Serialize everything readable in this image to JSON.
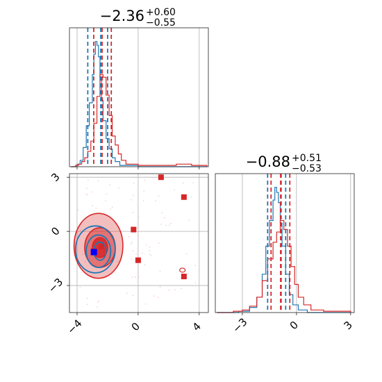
{
  "chart_data": {
    "type": "corner",
    "colors": {
      "series_a": "#d62728",
      "series_b": "#1f77b4",
      "truth": "#0000ff",
      "grid": "#b0b0b0"
    },
    "panels": [
      {
        "id": "param1-marginal",
        "type": "histogram",
        "title": {
          "median": "−2.36",
          "upper": "+0.60",
          "lower": "−0.55"
        },
        "xlim": [
          -4.5,
          4.6
        ],
        "xticks": [
          -4,
          0,
          4
        ],
        "xtick_labels": [
          "",
          "",
          ""
        ],
        "vlines": {
          "series_a": [
            -2.91,
            -2.36,
            -1.76
          ],
          "series_b": [
            -3.3,
            -2.45,
            -2.0
          ]
        },
        "series_a_density": [
          [
            -4.4,
            0.0
          ],
          [
            -4.1,
            0.01
          ],
          [
            -3.9,
            0.02
          ],
          [
            -3.7,
            0.04
          ],
          [
            -3.5,
            0.07
          ],
          [
            -3.3,
            0.12
          ],
          [
            -3.1,
            0.2
          ],
          [
            -2.9,
            0.34
          ],
          [
            -2.7,
            0.55
          ],
          [
            -2.5,
            0.72
          ],
          [
            -2.3,
            0.7
          ],
          [
            -2.1,
            0.56
          ],
          [
            -1.9,
            0.4
          ],
          [
            -1.7,
            0.24
          ],
          [
            -1.5,
            0.17
          ],
          [
            -1.3,
            0.1
          ],
          [
            -1.1,
            0.05
          ],
          [
            -0.8,
            0.02
          ],
          [
            0.0,
            0.01
          ],
          [
            1.5,
            0.01
          ],
          [
            2.5,
            0.02
          ],
          [
            3.5,
            0.01
          ],
          [
            4.5,
            0.0
          ]
        ],
        "series_b_density": [
          [
            -4.4,
            0.0
          ],
          [
            -4.0,
            0.02
          ],
          [
            -3.8,
            0.05
          ],
          [
            -3.6,
            0.15
          ],
          [
            -3.4,
            0.32
          ],
          [
            -3.2,
            0.5
          ],
          [
            -3.0,
            0.72
          ],
          [
            -2.9,
            0.88
          ],
          [
            -2.8,
            0.98
          ],
          [
            -2.7,
            0.95
          ],
          [
            -2.6,
            0.86
          ],
          [
            -2.5,
            0.7
          ],
          [
            -2.4,
            0.52
          ],
          [
            -2.3,
            0.36
          ],
          [
            -2.1,
            0.22
          ],
          [
            -1.9,
            0.14
          ],
          [
            -1.7,
            0.07
          ],
          [
            -1.5,
            0.04
          ],
          [
            -1.2,
            0.01
          ],
          [
            0.0,
            0.0
          ],
          [
            4.5,
            0.0
          ]
        ]
      },
      {
        "id": "joint",
        "type": "scatter-contour",
        "xlim": [
          -4.5,
          4.6
        ],
        "ylim": [
          -4.5,
          3.2
        ],
        "xticks": [
          -4,
          0,
          4
        ],
        "xtick_labels": [
          "−4",
          "0",
          "4"
        ],
        "yticks": [
          -3,
          0,
          3
        ],
        "ytick_labels": [
          "−3",
          "0",
          "3"
        ],
        "series_a_contours": [
          {
            "cx": -2.6,
            "cy": -0.8,
            "rx": 1.6,
            "ry": 1.8,
            "alpha": 0.3
          },
          {
            "cx": -2.5,
            "cy": -0.9,
            "rx": 1.0,
            "ry": 1.1,
            "alpha": 0.5
          },
          {
            "cx": -2.5,
            "cy": -0.9,
            "rx": 0.5,
            "ry": 0.55,
            "alpha": 0.85
          }
        ],
        "series_b_contours": [
          {
            "cx": -2.8,
            "cy": -1.0,
            "rx": 1.3,
            "ry": 1.3
          },
          {
            "cx": -2.6,
            "cy": -1.1,
            "rx": 0.8,
            "ry": 0.9
          },
          {
            "cx": -2.5,
            "cy": -1.1,
            "rx": 0.4,
            "ry": 0.5
          }
        ],
        "series_a_markers": [
          [
            1.5,
            3.0
          ],
          [
            3.0,
            1.9
          ],
          [
            -0.3,
            0.1
          ],
          [
            0.0,
            -1.6
          ],
          [
            3.0,
            -2.5
          ],
          [
            -2.4,
            -0.85
          ],
          [
            -2.9,
            -1.1
          ]
        ],
        "truth_marker": [
          -2.9,
          -1.15
        ],
        "background_points_count": 90
      },
      {
        "id": "param2-marginal",
        "type": "histogram",
        "title": {
          "median": "−0.88",
          "upper": "+0.51",
          "lower": "−0.53"
        },
        "xlim": [
          -4.5,
          3.2
        ],
        "xticks": [
          -3,
          0,
          3
        ],
        "xtick_labels": [
          "−3",
          "0",
          "3"
        ],
        "vlines": {
          "series_a": [
            -1.41,
            -0.88,
            -0.37
          ],
          "series_b": [
            -1.6,
            -0.85,
            -0.6
          ]
        },
        "series_a_density": [
          [
            -4.4,
            0.0
          ],
          [
            -3.5,
            0.01
          ],
          [
            -3.0,
            0.02
          ],
          [
            -2.6,
            0.05
          ],
          [
            -2.2,
            0.12
          ],
          [
            -1.9,
            0.25
          ],
          [
            -1.6,
            0.42
          ],
          [
            -1.3,
            0.55
          ],
          [
            -1.1,
            0.63
          ],
          [
            -0.9,
            0.72
          ],
          [
            -0.7,
            0.65
          ],
          [
            -0.5,
            0.52
          ],
          [
            -0.3,
            0.36
          ],
          [
            -0.1,
            0.22
          ],
          [
            0.1,
            0.12
          ],
          [
            0.4,
            0.06
          ],
          [
            0.8,
            0.02
          ],
          [
            1.5,
            0.01
          ],
          [
            3.0,
            0.0
          ]
        ],
        "series_b_density": [
          [
            -4.4,
            0.0
          ],
          [
            -3.2,
            0.01
          ],
          [
            -2.6,
            0.04
          ],
          [
            -2.2,
            0.12
          ],
          [
            -1.9,
            0.3
          ],
          [
            -1.7,
            0.52
          ],
          [
            -1.5,
            0.72
          ],
          [
            -1.3,
            0.88
          ],
          [
            -1.2,
            0.98
          ],
          [
            -1.1,
            0.94
          ],
          [
            -1.0,
            0.86
          ],
          [
            -0.9,
            0.7
          ],
          [
            -0.8,
            0.52
          ],
          [
            -0.6,
            0.3
          ],
          [
            -0.4,
            0.14
          ],
          [
            -0.2,
            0.06
          ],
          [
            0.1,
            0.02
          ],
          [
            0.6,
            0.0
          ],
          [
            3.0,
            0.0
          ]
        ]
      }
    ]
  }
}
